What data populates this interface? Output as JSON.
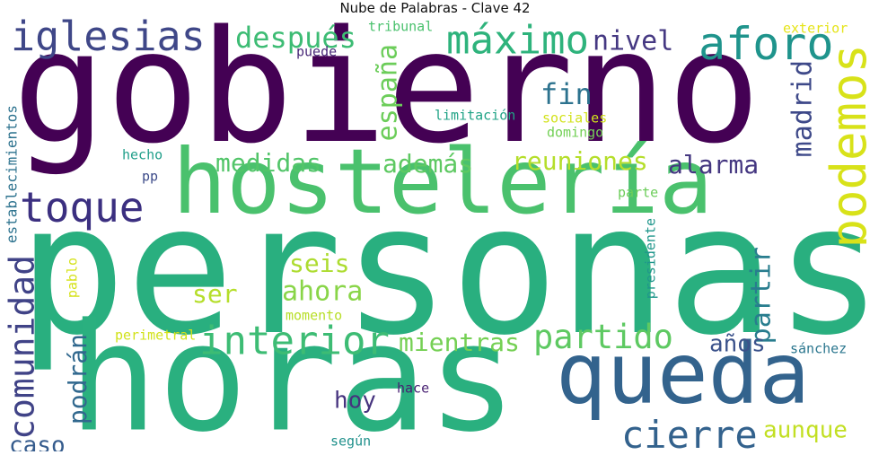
{
  "title": "Nube de Palabras - Clave 42",
  "words": [
    {
      "text": "personas",
      "color": "#29af7f"
    },
    {
      "text": "gobierno",
      "color": "#440154"
    },
    {
      "text": "horas",
      "color": "#2ab07f"
    },
    {
      "text": "hostelería",
      "color": "#4ac16d"
    },
    {
      "text": "queda",
      "color": "#33638d"
    },
    {
      "text": "toque",
      "color": "#3b2f80"
    },
    {
      "text": "iglesias",
      "color": "#3f4788"
    },
    {
      "text": "máximo",
      "color": "#2eb37c"
    },
    {
      "text": "aforo",
      "color": "#1f948c"
    },
    {
      "text": "podemos",
      "color": "#d8e219"
    },
    {
      "text": "interior",
      "color": "#3dbc74"
    },
    {
      "text": "comunidad",
      "color": "#404387"
    },
    {
      "text": "partido",
      "color": "#5ec962"
    },
    {
      "text": "cierre",
      "color": "#33628d"
    },
    {
      "text": "después",
      "color": "#3dbc74"
    },
    {
      "text": "nivel",
      "color": "#453882"
    },
    {
      "text": "medidas",
      "color": "#52c569"
    },
    {
      "text": "además",
      "color": "#5ec962"
    },
    {
      "text": "reuniones",
      "color": "#b5de2b"
    },
    {
      "text": "alarma",
      "color": "#453781"
    },
    {
      "text": "españa",
      "color": "#6ccd5a"
    },
    {
      "text": "fin",
      "color": "#2c728e"
    },
    {
      "text": "madrid",
      "color": "#3e4989"
    },
    {
      "text": "mientras",
      "color": "#75d054"
    },
    {
      "text": "ahora",
      "color": "#89d548"
    },
    {
      "text": "seis",
      "color": "#addc30"
    },
    {
      "text": "ser",
      "color": "#b5de2b"
    },
    {
      "text": "partir",
      "color": "#287d8e"
    },
    {
      "text": "años",
      "color": "#3b528b"
    },
    {
      "text": "podrán",
      "color": "#31688e"
    },
    {
      "text": "hoy",
      "color": "#46337e"
    },
    {
      "text": "aunque",
      "color": "#c2df23"
    },
    {
      "text": "caso",
      "color": "#365c8d"
    },
    {
      "text": "establecimientos",
      "color": "#2c728e"
    },
    {
      "text": "limitación",
      "color": "#20a386"
    },
    {
      "text": "sociales",
      "color": "#d2e21b"
    },
    {
      "text": "domingo",
      "color": "#73d056"
    },
    {
      "text": "tribunal",
      "color": "#4ac16d"
    },
    {
      "text": "exterior",
      "color": "#e5e419"
    },
    {
      "text": "puede",
      "color": "#482878"
    },
    {
      "text": "hecho",
      "color": "#1f9e89"
    },
    {
      "text": "pp",
      "color": "#3e4c8a"
    },
    {
      "text": "parte",
      "color": "#6ccd5a"
    },
    {
      "text": "presidente",
      "color": "#1f968b"
    },
    {
      "text": "pablo",
      "color": "#d5e21a"
    },
    {
      "text": "momento",
      "color": "#b8de29"
    },
    {
      "text": "perimetral",
      "color": "#d2e21b"
    },
    {
      "text": "sánchez",
      "color": "#2a768e"
    },
    {
      "text": "hace",
      "color": "#482173"
    },
    {
      "text": "según",
      "color": "#21918c"
    }
  ]
}
